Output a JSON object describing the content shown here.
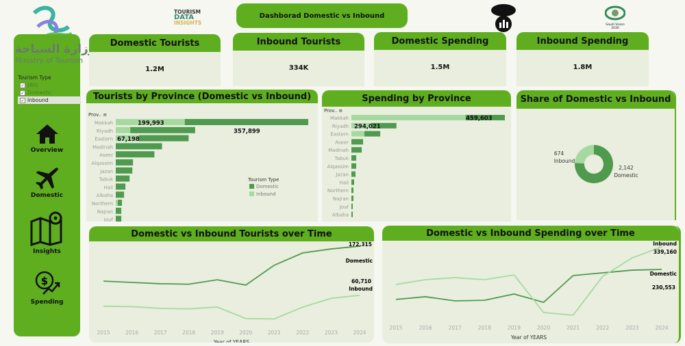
{
  "header": {
    "title": "Dashborad Domestic vs Inbound",
    "brand_lines": [
      "TOURISM",
      "DATA",
      "INSIGHTS"
    ],
    "ministry_ar": "وزارة السياحة",
    "ministry_en": "Ministry of Tourism",
    "vision_text": "Saudi Vision 2030"
  },
  "filter": {
    "title": "Tourism Type",
    "options": [
      {
        "label": "(All)",
        "checked": true
      },
      {
        "label": "Domestic",
        "checked": true
      },
      {
        "label": "Inbound",
        "checked": true
      }
    ]
  },
  "nav": [
    {
      "label": "Overview",
      "icon": "home-icon"
    },
    {
      "label": "Domestic",
      "icon": "airplane-icon"
    },
    {
      "label": "Insights",
      "icon": "map-pin-icon"
    },
    {
      "label": "Spending",
      "icon": "money-growth-icon"
    }
  ],
  "kpis": [
    {
      "title": "Domestic Tourists",
      "value": "1.2M"
    },
    {
      "title": "Inbound Tourists",
      "value": "334K"
    },
    {
      "title": "Domestic Spending",
      "value": "1.5M"
    },
    {
      "title": "Inbound Spending",
      "value": "1.8M"
    }
  ],
  "colors": {
    "domestic": "#4f9a4f",
    "inbound": "#a6d9a0",
    "accent": "#5fae1f",
    "panel": "#e9eede"
  },
  "chart_data": [
    {
      "type": "bar",
      "title": "Tourists by Province (Domestic vs Inbound)",
      "axis_header": "Prov..",
      "stacked": true,
      "orientation": "horizontal",
      "categories": [
        "Makkah",
        "Riyadh",
        "Eastern",
        "Madinah",
        "Aseer",
        "Alqassim",
        "Jazan",
        "Tabuk",
        "Hail",
        "Albaha",
        "Northern",
        "Najran",
        "Jouf"
      ],
      "series": [
        {
          "name": "Inbound",
          "values": [
            199993,
            42000,
            67198,
            0,
            0,
            0,
            0,
            0,
            0,
            0,
            6000,
            0,
            0
          ]
        },
        {
          "name": "Domestic",
          "values": [
            357899,
            188000,
            144000,
            134000,
            112000,
            50000,
            48000,
            40000,
            28000,
            24000,
            12000,
            16000,
            16000
          ]
        }
      ],
      "data_labels": [
        {
          "text": "199,993"
        },
        {
          "text": "357,899"
        },
        {
          "text": "67,198"
        }
      ],
      "legend": {
        "title": "Tourism Type",
        "items": [
          "Domestic",
          "Inbound"
        ],
        "placement": "right"
      }
    },
    {
      "type": "bar",
      "title": "Spending by Province",
      "axis_header": "Prov..",
      "stacked": true,
      "orientation": "horizontal",
      "categories": [
        "Makkah",
        "Riyadh",
        "Eastern",
        "Aseer",
        "Madinah",
        "Tabuk",
        "Alqassim",
        "Jazan",
        "Hail",
        "Northern",
        "Najran",
        "Jouf",
        "Albaha"
      ],
      "series": [
        {
          "name": "Inbound",
          "values": [
            1340000,
            234000,
            153000,
            0,
            0,
            0,
            0,
            0,
            0,
            0,
            0,
            0,
            0
          ]
        },
        {
          "name": "Domestic",
          "values": [
            459603,
            294021,
            185000,
            137000,
            121000,
            56000,
            56000,
            48000,
            32000,
            24000,
            24000,
            16000,
            16000
          ]
        }
      ],
      "data_labels": [
        {
          "text": "459,603"
        },
        {
          "text": "294,021"
        }
      ]
    },
    {
      "type": "pie",
      "title": "Share of Domestic vs Inbound",
      "donut": true,
      "slices": [
        {
          "name": "Inbound",
          "value": 674,
          "label": "674"
        },
        {
          "name": "Domestic",
          "value": 2142,
          "label": "2,142"
        }
      ]
    },
    {
      "type": "line",
      "title": "Domestic vs Inbound Tourists over Time",
      "xlabel": "Year of YEARS",
      "x": [
        2015,
        2016,
        2017,
        2018,
        2019,
        2020,
        2021,
        2022,
        2023,
        2024
      ],
      "series": [
        {
          "name": "Domestic",
          "values": [
            93000,
            90000,
            87000,
            86000,
            96000,
            84000,
            129000,
            157000,
            166000,
            172315
          ],
          "end_label": "172,315"
        },
        {
          "name": "Inbound",
          "values": [
            36000,
            35000,
            31000,
            30000,
            34000,
            8000,
            7000,
            34000,
            54000,
            60710
          ],
          "end_label": "60,710"
        }
      ]
    },
    {
      "type": "line",
      "title": "Domestic vs Inbound Spending over Time",
      "xlabel": "Year of YEARS",
      "x": [
        2015,
        2016,
        2017,
        2018,
        2019,
        2020,
        2021,
        2022,
        2023,
        2024
      ],
      "series": [
        {
          "name": "Domestic",
          "values": [
            86000,
            99000,
            79000,
            82000,
            112000,
            72000,
            201000,
            214000,
            227000,
            230553
          ],
          "end_label": "230,553"
        },
        {
          "name": "Inbound",
          "values": [
            158000,
            181000,
            191000,
            181000,
            204000,
            23000,
            10000,
            197000,
            286000,
            339160
          ],
          "end_label": "339,160"
        }
      ]
    }
  ]
}
